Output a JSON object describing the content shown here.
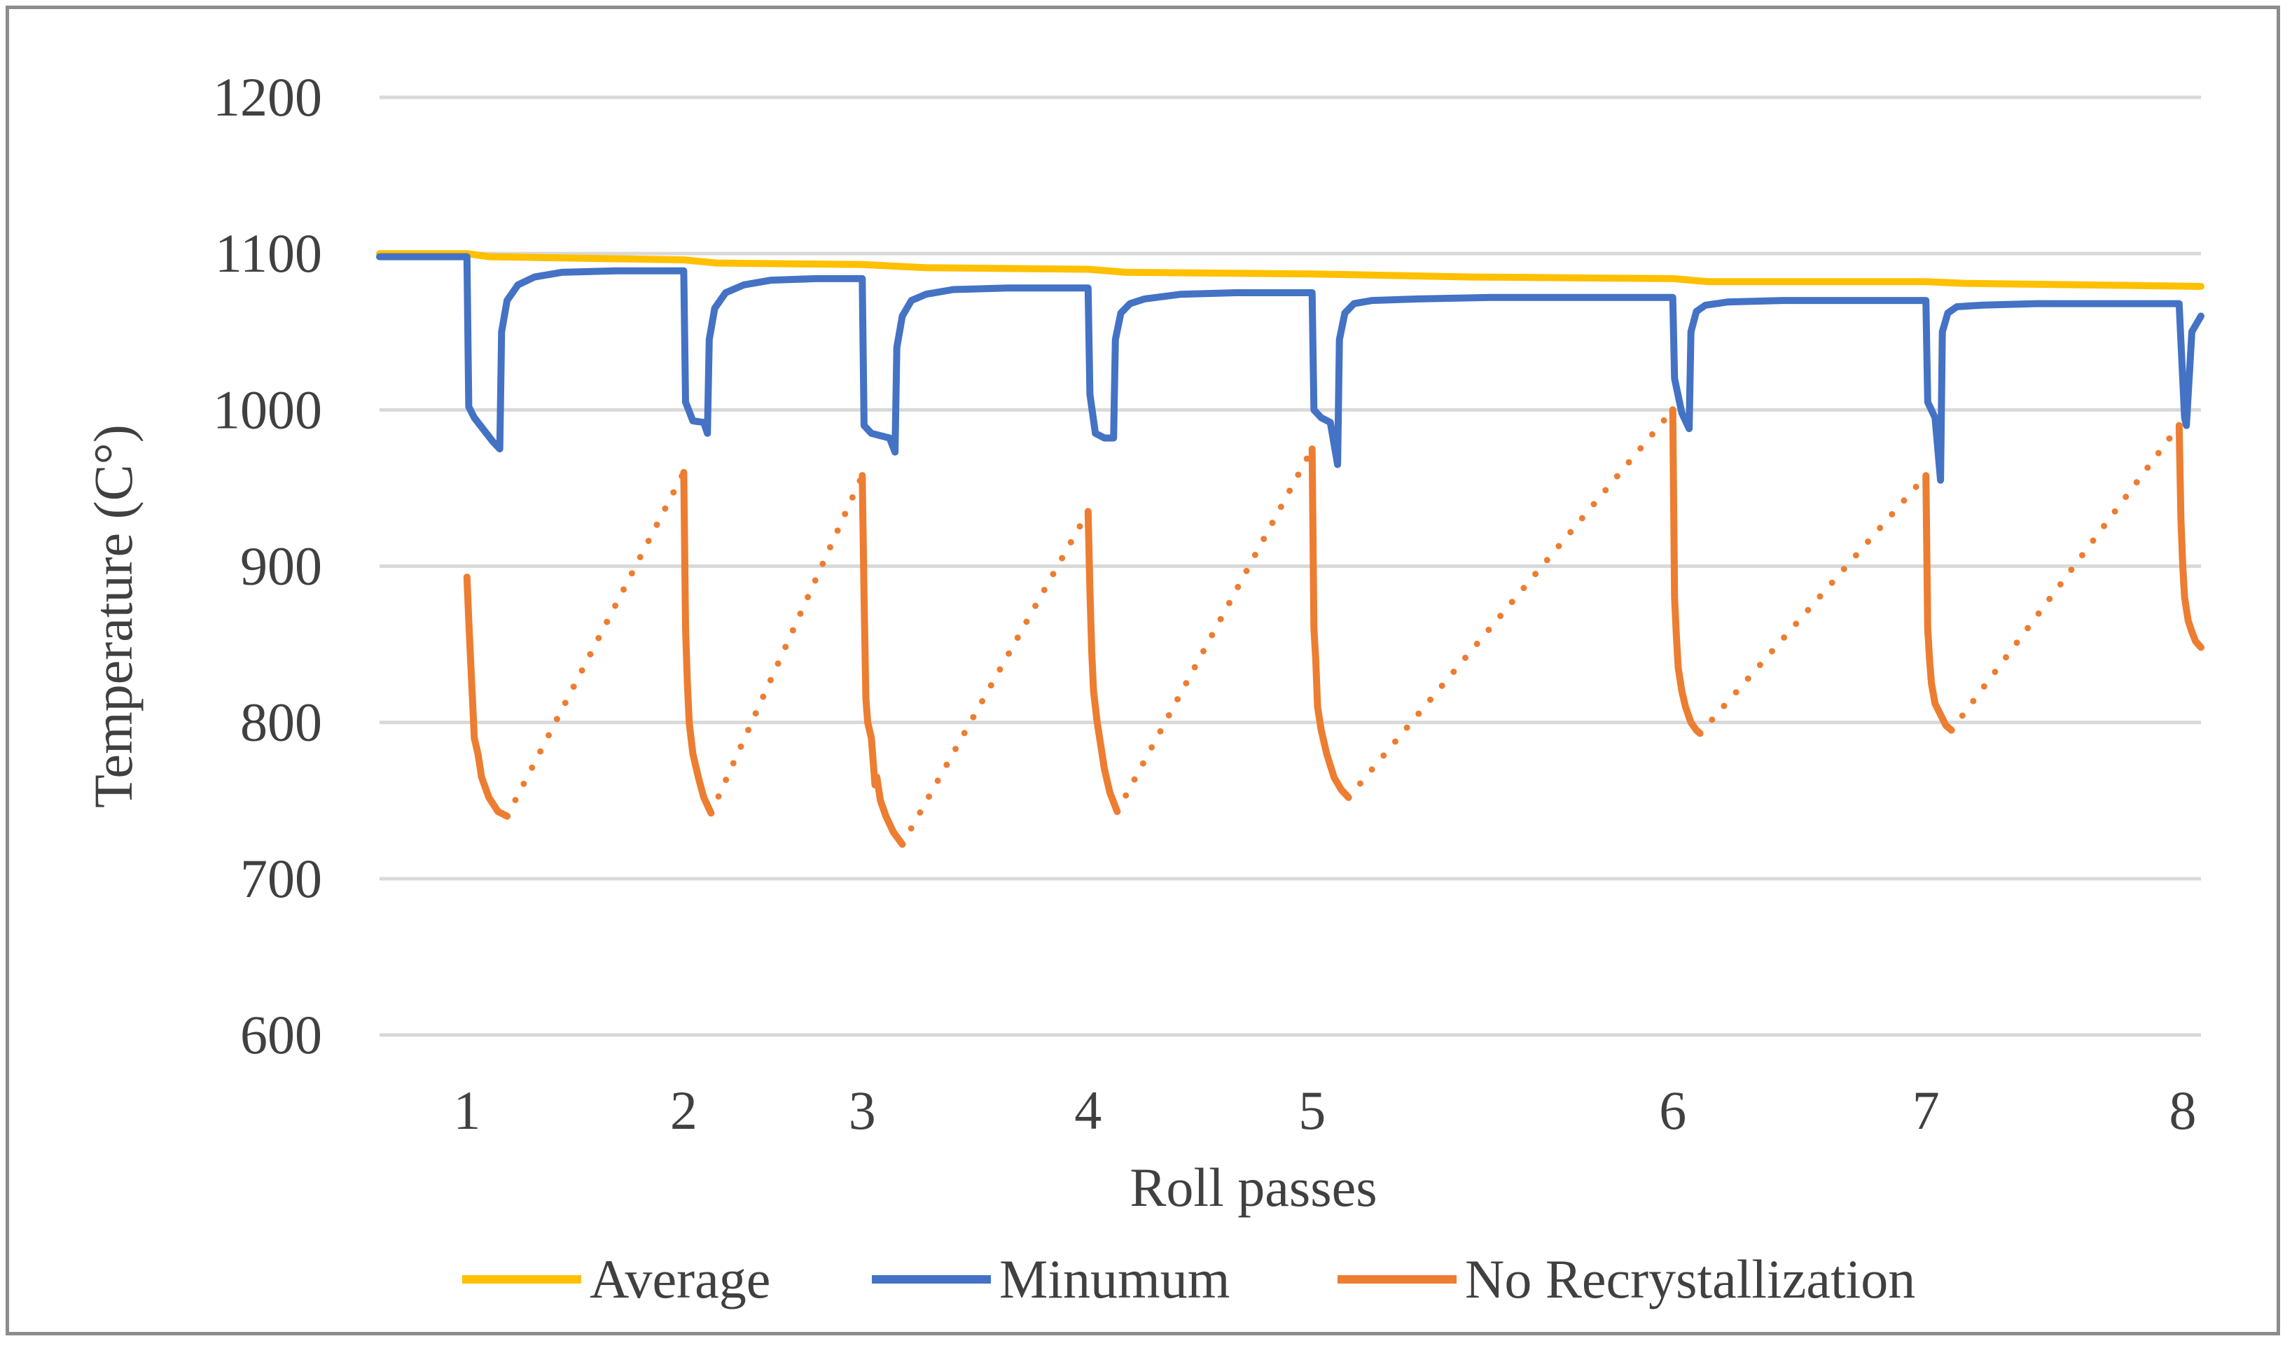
{
  "chart_data": {
    "type": "line",
    "title": "",
    "xlabel": "Roll passes",
    "ylabel": "Temperature (C°)",
    "ylim": [
      600,
      1200
    ],
    "yticks": [
      "600",
      "700",
      "800",
      "900",
      "1000",
      "1100",
      "1200"
    ],
    "xlim": [
      0,
      1000
    ],
    "xtick_labels": [
      "1",
      "2",
      "3",
      "4",
      "5",
      "6",
      "7",
      "8"
    ],
    "xtick_positions": [
      48,
      167,
      265,
      389,
      512,
      710,
      849,
      990
    ],
    "grid": true,
    "legend_position": "bottom",
    "series": [
      {
        "name": "Average",
        "color": "#ffc000",
        "style": "solid",
        "x": [
          0,
          48,
          60,
          167,
          185,
          265,
          300,
          389,
          410,
          512,
          600,
          710,
          730,
          849,
          870,
          1000
        ],
        "y": [
          1100,
          1100,
          1098,
          1096,
          1094,
          1093,
          1091,
          1090,
          1088,
          1087,
          1085,
          1084,
          1082,
          1082,
          1081,
          1079
        ]
      },
      {
        "name": "Minumum",
        "color": "#4472c4",
        "style": "solid",
        "x": [
          0,
          48,
          49,
          52,
          62,
          66,
          67,
          70,
          76,
          85,
          100,
          130,
          165,
          167,
          168,
          172,
          178,
          180,
          181,
          184,
          190,
          200,
          215,
          240,
          262,
          265,
          266,
          270,
          280,
          283,
          284,
          287,
          292,
          300,
          315,
          345,
          386,
          389,
          390,
          393,
          398,
          403,
          404,
          407,
          412,
          420,
          440,
          470,
          508,
          512,
          513,
          517,
          522,
          526,
          527,
          530,
          535,
          545,
          570,
          610,
          650,
          706,
          710,
          711,
          715,
          719,
          720,
          723,
          728,
          740,
          770,
          805,
          845,
          849,
          850,
          854,
          857,
          858,
          861,
          866,
          880,
          910,
          945,
          985,
          988,
          991,
          992,
          995,
          1000
        ],
        "y": [
          1098,
          1098,
          1002,
          995,
          980,
          975,
          1050,
          1070,
          1080,
          1085,
          1088,
          1089,
          1089,
          1089,
          1005,
          993,
          992,
          985,
          1045,
          1065,
          1075,
          1080,
          1083,
          1084,
          1084,
          1084,
          990,
          985,
          982,
          973,
          1040,
          1060,
          1070,
          1074,
          1077,
          1078,
          1078,
          1078,
          1010,
          985,
          982,
          982,
          1045,
          1062,
          1068,
          1071,
          1074,
          1075,
          1075,
          1075,
          1000,
          995,
          992,
          965,
          1045,
          1062,
          1068,
          1070,
          1071,
          1072,
          1072,
          1072,
          1072,
          1020,
          998,
          988,
          1050,
          1063,
          1067,
          1069,
          1070,
          1070,
          1070,
          1070,
          1005,
          995,
          955,
          1050,
          1062,
          1066,
          1067,
          1068,
          1068,
          1068,
          1068,
          995,
          990,
          1050,
          1060
        ]
      },
      {
        "name": "No Recrystallization",
        "color": "#ed7d31",
        "style": "solid with dotted connectors",
        "segments": [
          {
            "x": [
              48,
              49,
              50,
              51,
              52,
              54,
              56,
              60,
              65,
              70
            ],
            "y": [
              893,
              865,
              840,
              815,
              790,
              780,
              765,
              752,
              743,
              740
            ]
          },
          {
            "x": [
              167,
              168,
              169,
              170,
              172,
              175,
              178,
              182
            ],
            "y": [
              960,
              860,
              825,
              800,
              780,
              765,
              752,
              742
            ]
          },
          {
            "x": [
              265,
              266,
              267,
              268,
              270,
              272,
              273,
              275,
              278,
              282,
              287
            ],
            "y": [
              958,
              880,
              815,
              800,
              790,
              760,
              765,
              750,
              740,
              730,
              722
            ]
          },
          {
            "x": [
              389,
              390,
              391,
              392,
              394,
              396,
              398,
              401,
              405
            ],
            "y": [
              935,
              885,
              845,
              820,
              800,
              785,
              770,
              755,
              743
            ]
          },
          {
            "x": [
              512,
              513,
              514,
              515,
              517,
              520,
              524,
              528,
              532
            ],
            "y": [
              975,
              860,
              840,
              810,
              795,
              780,
              765,
              757,
              752
            ]
          },
          {
            "x": [
              710,
              711,
              712,
              713,
              715,
              717,
              720,
              723,
              725
            ],
            "y": [
              1000,
              880,
              855,
              835,
              820,
              810,
              800,
              795,
              793
            ]
          },
          {
            "x": [
              849,
              850,
              851,
              852,
              854,
              857,
              860,
              863
            ],
            "y": [
              958,
              860,
              840,
              825,
              812,
              805,
              798,
              795
            ]
          },
          {
            "x": [
              988,
              989,
              990,
              991,
              993,
              995,
              997,
              1000
            ],
            "y": [
              990,
              930,
              900,
              880,
              865,
              858,
              852,
              848
            ]
          }
        ],
        "dotted_connectors": [
          {
            "x": [
              70,
              167
            ],
            "y": [
              740,
              960
            ]
          },
          {
            "x": [
              182,
              265
            ],
            "y": [
              742,
              958
            ]
          },
          {
            "x": [
              287,
              389
            ],
            "y": [
              722,
              935
            ]
          },
          {
            "x": [
              405,
              512
            ],
            "y": [
              743,
              975
            ]
          },
          {
            "x": [
              532,
              710
            ],
            "y": [
              752,
              1000
            ]
          },
          {
            "x": [
              725,
              849
            ],
            "y": [
              793,
              958
            ]
          },
          {
            "x": [
              863,
              988
            ],
            "y": [
              795,
              990
            ]
          }
        ]
      }
    ]
  }
}
